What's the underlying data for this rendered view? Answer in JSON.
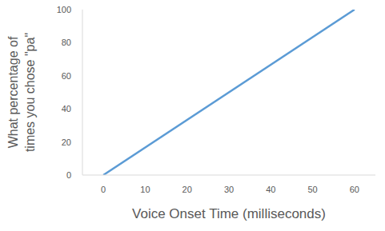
{
  "chart_data": {
    "type": "line",
    "x_label": "Voice Onset Time (milliseconds)",
    "y_label": "What percentage of times you chose \"pa\"",
    "x": [
      0,
      60
    ],
    "values": [
      0,
      100
    ],
    "color": "#5b9bd5",
    "xlim": [
      -5,
      65
    ],
    "xticks": [
      0,
      10,
      20,
      30,
      40,
      50,
      60
    ],
    "ylim": [
      0,
      100
    ],
    "yticks": [
      0,
      20,
      40,
      60,
      80,
      100
    ],
    "grid": false
  }
}
